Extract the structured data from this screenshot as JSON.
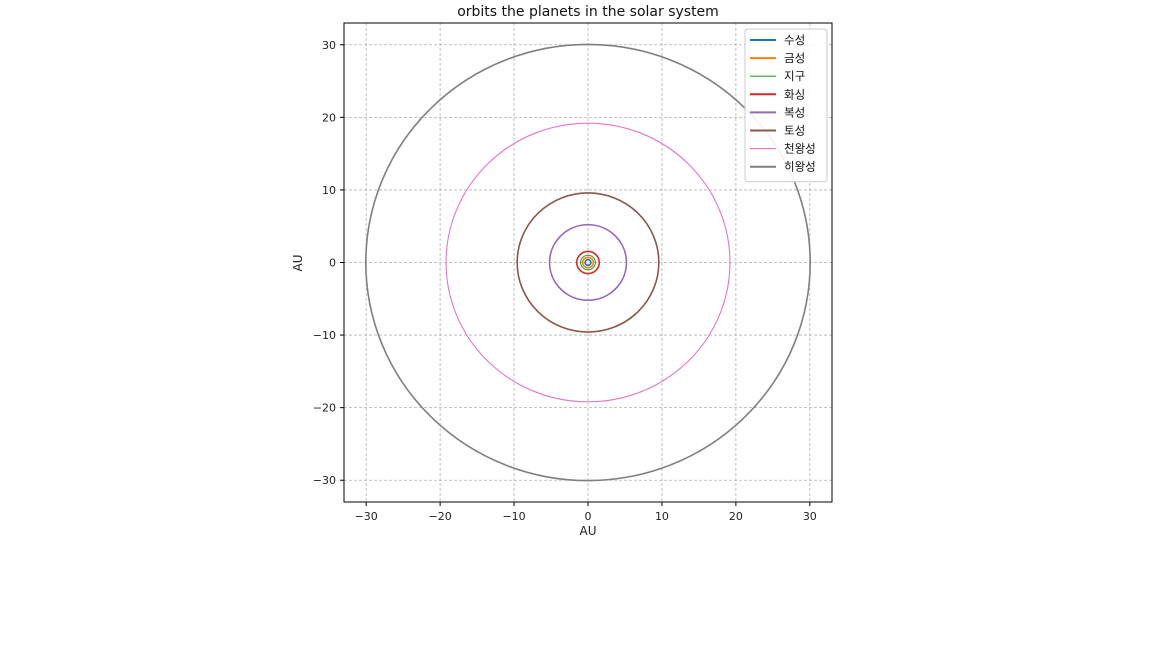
{
  "chart_data": {
    "type": "line",
    "title": "orbits the planets in the solar system",
    "xlabel": "AU",
    "ylabel": "AU",
    "xlim": [
      -33,
      33
    ],
    "ylim": [
      -33,
      33
    ],
    "xticks": [
      -30,
      -20,
      -10,
      0,
      10,
      20,
      30
    ],
    "yticks": [
      -30,
      -20,
      -10,
      0,
      10,
      20,
      30
    ],
    "xtick_labels": [
      "−30",
      "−20",
      "−10",
      "0",
      "10",
      "20",
      "30"
    ],
    "ytick_labels": [
      "−30",
      "−20",
      "−10",
      "0",
      "10",
      "20",
      "30"
    ],
    "grid": true,
    "legend_position": "top-right",
    "series": [
      {
        "name": "수성",
        "color": "#1f77b4",
        "radius_au": 0.39
      },
      {
        "name": "금성",
        "color": "#ff7f0e",
        "radius_au": 0.72
      },
      {
        "name": "지구",
        "color": "#2ca02c",
        "radius_au": 1.0
      },
      {
        "name": "화싱",
        "color": "#d62728",
        "radius_au": 1.52
      },
      {
        "name": "복성",
        "color": "#9467bd",
        "radius_au": 5.2
      },
      {
        "name": "토성",
        "color": "#8c564b",
        "radius_au": 9.58
      },
      {
        "name": "천왕성",
        "color": "#e377c2",
        "radius_au": 19.2
      },
      {
        "name": "히왕성",
        "color": "#7f7f7f",
        "radius_au": 30.05
      }
    ]
  }
}
